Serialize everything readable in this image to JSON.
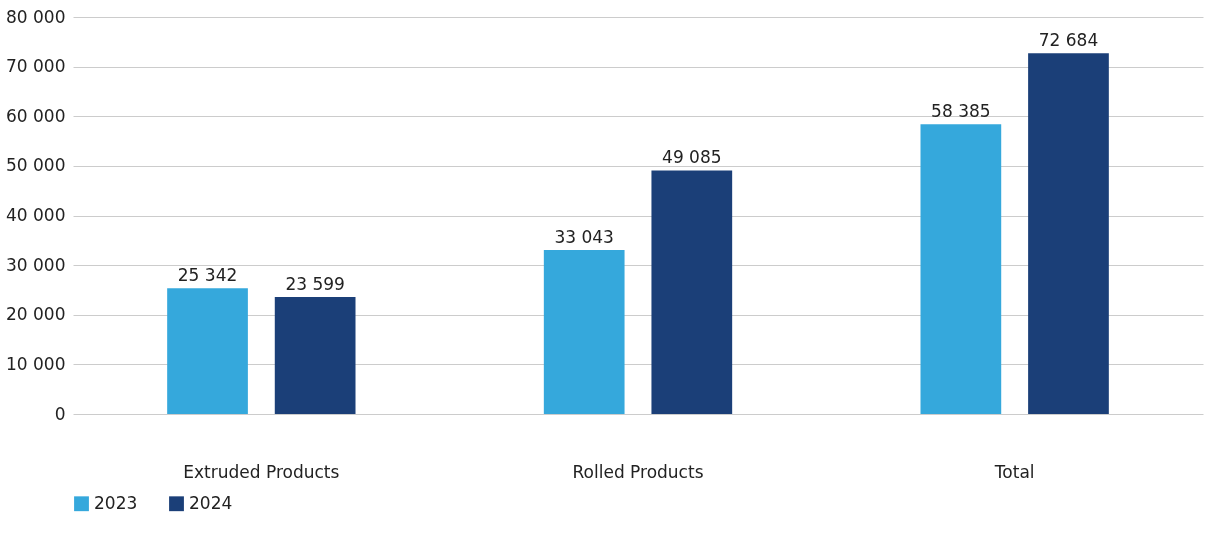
{
  "chart_data": {
    "type": "bar",
    "categories": [
      "Extruded Products",
      "Rolled Products",
      "Total"
    ],
    "series": [
      {
        "name": "2023",
        "color": "#35a8dc",
        "values": [
          25342,
          33043,
          58385
        ],
        "value_labels": [
          "25 342",
          "33 043",
          "58 385"
        ]
      },
      {
        "name": "2024",
        "color": "#1b3f78",
        "values": [
          23599,
          49085,
          72684
        ],
        "value_labels": [
          "23 599",
          "49 085",
          "72 684"
        ]
      }
    ],
    "ylim": [
      0,
      80000
    ],
    "yticks": [
      0,
      {
        "value": 10000,
        "label": "10 000"
      },
      {
        "value": 20000,
        "label": "20 000"
      },
      {
        "value": 30000,
        "label": "30 000"
      },
      {
        "value": 40000,
        "label": "40 000"
      },
      {
        "value": 50000,
        "label": "50 000"
      },
      {
        "value": 60000,
        "label": "60 000"
      },
      {
        "value": 70000,
        "label": "70 000"
      },
      {
        "value": 80000,
        "label": "80 000"
      }
    ],
    "grid": "y",
    "legend": "bottom"
  }
}
